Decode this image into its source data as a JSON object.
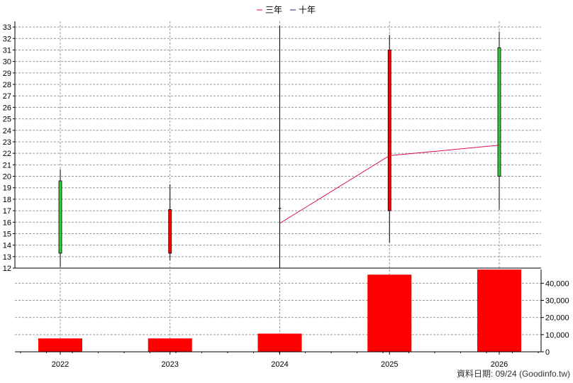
{
  "chart_data": {
    "type": "candlestick+bar",
    "legend": [
      {
        "label": "三年",
        "color": "#d8104a"
      },
      {
        "label": "十年",
        "color": "#4b0a8c"
      }
    ],
    "categories": [
      "2022",
      "2023",
      "2024",
      "2025",
      "2026"
    ],
    "price_axis": {
      "ylim": [
        12,
        33.5
      ],
      "ticks": [
        12,
        13,
        14,
        15,
        16,
        17,
        18,
        19,
        20,
        21,
        22,
        23,
        24,
        25,
        26,
        27,
        28,
        29,
        30,
        31,
        32,
        33
      ]
    },
    "volume_axis": {
      "ylim": [
        0,
        48000
      ],
      "ticks": [
        0,
        10000,
        20000,
        30000,
        40000
      ],
      "tick_labels": [
        "0",
        "10,000",
        "20,000",
        "30,000",
        "40,000"
      ]
    },
    "candles": [
      {
        "x": "2022",
        "open": 13.3,
        "close": 19.6,
        "high": 20.6,
        "low": 12.1,
        "color": "#33cc33"
      },
      {
        "x": "2023",
        "open": 17.1,
        "close": 13.3,
        "high": 19.3,
        "low": 12.7,
        "color": "#ff0000"
      },
      {
        "x": "2024",
        "open": 17.2,
        "close": 17.2,
        "high": 33.1,
        "low": 12.0,
        "color": "#000000"
      },
      {
        "x": "2025",
        "open": 31.0,
        "close": 17.0,
        "high": 32.3,
        "low": 14.2,
        "color": "#ff0000"
      },
      {
        "x": "2026",
        "open": 20.0,
        "close": 31.2,
        "high": 32.6,
        "low": 17.1,
        "color": "#33cc33"
      }
    ],
    "series": [
      {
        "name": "三年",
        "x": [
          "2024",
          "2025",
          "2026"
        ],
        "values": [
          15.9,
          21.8,
          22.7
        ],
        "color": "#d8104a"
      }
    ],
    "volume": [
      7800,
      7800,
      10600,
      45000,
      48000
    ],
    "volume_color": "#ff0000",
    "grid": true
  },
  "footer": "資料日期: 09/24  (Goodinfo.tw)"
}
